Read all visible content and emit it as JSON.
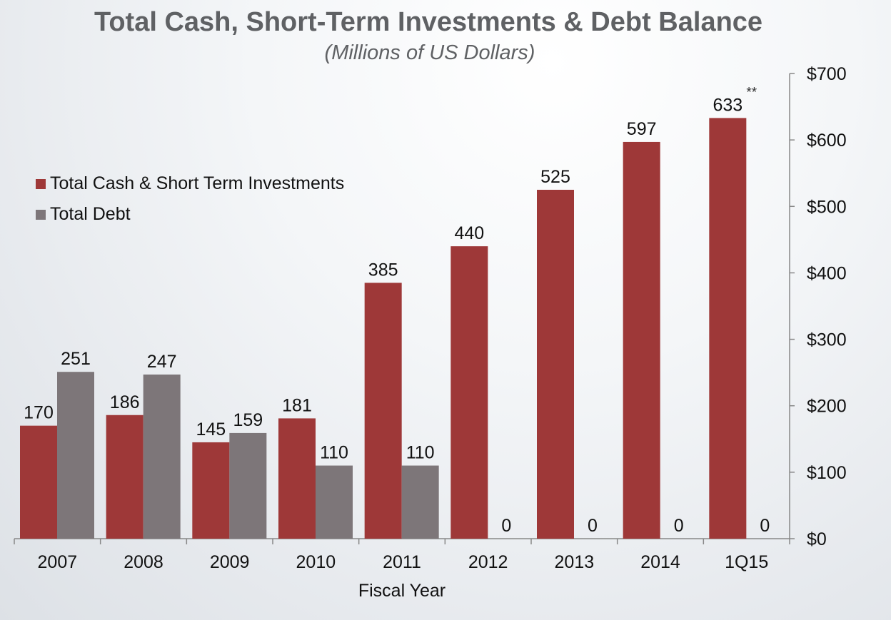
{
  "chart_data": {
    "type": "bar",
    "title": "Total Cash, Short-Term Investments & Debt Balance",
    "subtitle": "(Millions of US Dollars)",
    "xlabel": "Fiscal Year",
    "ylabel": "",
    "categories": [
      "2007",
      "2008",
      "2009",
      "2010",
      "2011",
      "2012",
      "2013",
      "2014",
      "1Q15"
    ],
    "series": [
      {
        "name": "Total Cash & Short Term Investments",
        "color": "#9e3838",
        "values": [
          170,
          186,
          145,
          181,
          385,
          440,
          525,
          597,
          633
        ]
      },
      {
        "name": "Total Debt",
        "color": "#7d7679",
        "values": [
          251,
          247,
          159,
          110,
          110,
          0,
          0,
          0,
          0
        ]
      }
    ],
    "y_axis": {
      "position": "right",
      "ylim": [
        0,
        700
      ],
      "ticks": [
        0,
        100,
        200,
        300,
        400,
        500,
        600,
        700
      ],
      "tick_labels": [
        "$0",
        "$100",
        "$200",
        "$300",
        "$400",
        "$500",
        "$600",
        "$700"
      ]
    },
    "annotations": [
      {
        "category": "1Q15",
        "text": "**"
      }
    ],
    "legend_position": "top-left",
    "grid": false
  }
}
